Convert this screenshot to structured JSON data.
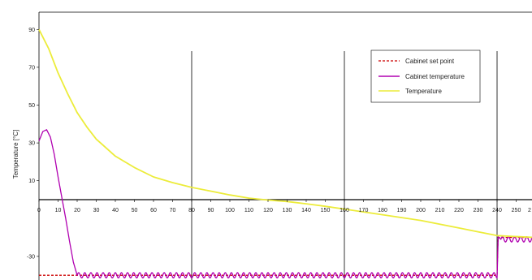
{
  "chart_data": {
    "type": "line",
    "ylabel": "Temperature [°C]",
    "xlim": [
      0,
      260
    ],
    "ylim": [
      -40,
      100
    ],
    "x_ticks": [
      0,
      10,
      20,
      30,
      40,
      50,
      60,
      70,
      80,
      90,
      100,
      110,
      120,
      130,
      140,
      150,
      160,
      170,
      180,
      190,
      200,
      210,
      220,
      230,
      240,
      250
    ],
    "y_ticks": [
      90,
      70,
      50,
      30,
      10,
      -30
    ],
    "x_ticks_partial": [
      "2"
    ],
    "vertical_markers": [
      80,
      160,
      240
    ],
    "grid": false,
    "legend_position": "top-right",
    "series": [
      {
        "name": "Cabinet set point",
        "color": "#cc0000",
        "style": "dashed",
        "x": [
          0,
          19,
          19.5,
          240,
          240.5,
          260
        ],
        "y": [
          -40,
          -40,
          -40,
          -40,
          -20,
          -20
        ]
      },
      {
        "name": "Cabinet temperature",
        "color": "#b000b0",
        "style": "solid",
        "x": [
          0,
          2,
          4,
          6,
          8,
          10,
          12,
          14,
          16,
          18,
          20,
          240,
          242,
          260
        ],
        "y": [
          31,
          36,
          37,
          33,
          24,
          12,
          1,
          -10,
          -22,
          -33,
          -40,
          -40,
          -23,
          -23
        ],
        "oscillation": {
          "segments": [
            {
              "from": 20,
              "to": 240,
              "center": -40,
              "amplitude": 1.4,
              "period": 3.2
            },
            {
              "from": 242,
              "to": 260,
              "center": -21,
              "amplitude": 1.4,
              "period": 3.2
            }
          ]
        }
      },
      {
        "name": "Temperature",
        "color": "#ecec3a",
        "style": "solid",
        "x": [
          0,
          5,
          10,
          15,
          20,
          25,
          30,
          40,
          50,
          60,
          70,
          80,
          90,
          100,
          110,
          120,
          130,
          140,
          150,
          160,
          170,
          180,
          190,
          200,
          210,
          220,
          230,
          240,
          260
        ],
        "y": [
          90,
          80,
          67,
          56,
          46,
          38.5,
          32,
          23,
          17,
          12,
          9,
          6.5,
          4.5,
          2.5,
          0.8,
          -0.2,
          -1,
          -2.2,
          -3.5,
          -5,
          -6.5,
          -8,
          -9.5,
          -11,
          -13,
          -15,
          -17,
          -19,
          -20
        ]
      }
    ]
  }
}
